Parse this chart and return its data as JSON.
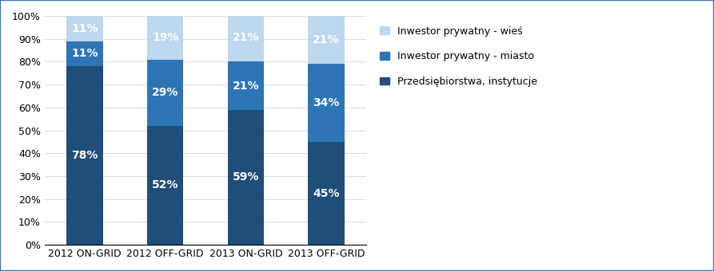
{
  "categories": [
    "2012 ON-GRID",
    "2012 OFF-GRID",
    "2013 ON-GRID",
    "2013 OFF-GRID"
  ],
  "series": {
    "Przedsiębiorstwa, instytucje": [
      78,
      52,
      59,
      45
    ],
    "Inwestor prywatny - miasto": [
      11,
      29,
      21,
      34
    ],
    "Inwestor prywatny - wieś": [
      11,
      19,
      21,
      21
    ]
  },
  "colors": {
    "Przedsiębiorstwa, instytucje": "#1F4E79",
    "Inwestor prywatny - miasto": "#2E75B6",
    "Inwestor prywatny - wieś": "#BDD7EE"
  },
  "bar_width": 0.45,
  "ylim": [
    0,
    100
  ],
  "yticks": [
    0,
    10,
    20,
    30,
    40,
    50,
    60,
    70,
    80,
    90,
    100
  ],
  "ytick_labels": [
    "0%",
    "10%",
    "20%",
    "30%",
    "40%",
    "50%",
    "60%",
    "70%",
    "80%",
    "90%",
    "100%"
  ],
  "label_fontsize": 10,
  "tick_fontsize": 9,
  "legend_fontsize": 9,
  "text_color": "#FFFFFF",
  "background_color": "#FFFFFF",
  "border_color": "#4472C4"
}
